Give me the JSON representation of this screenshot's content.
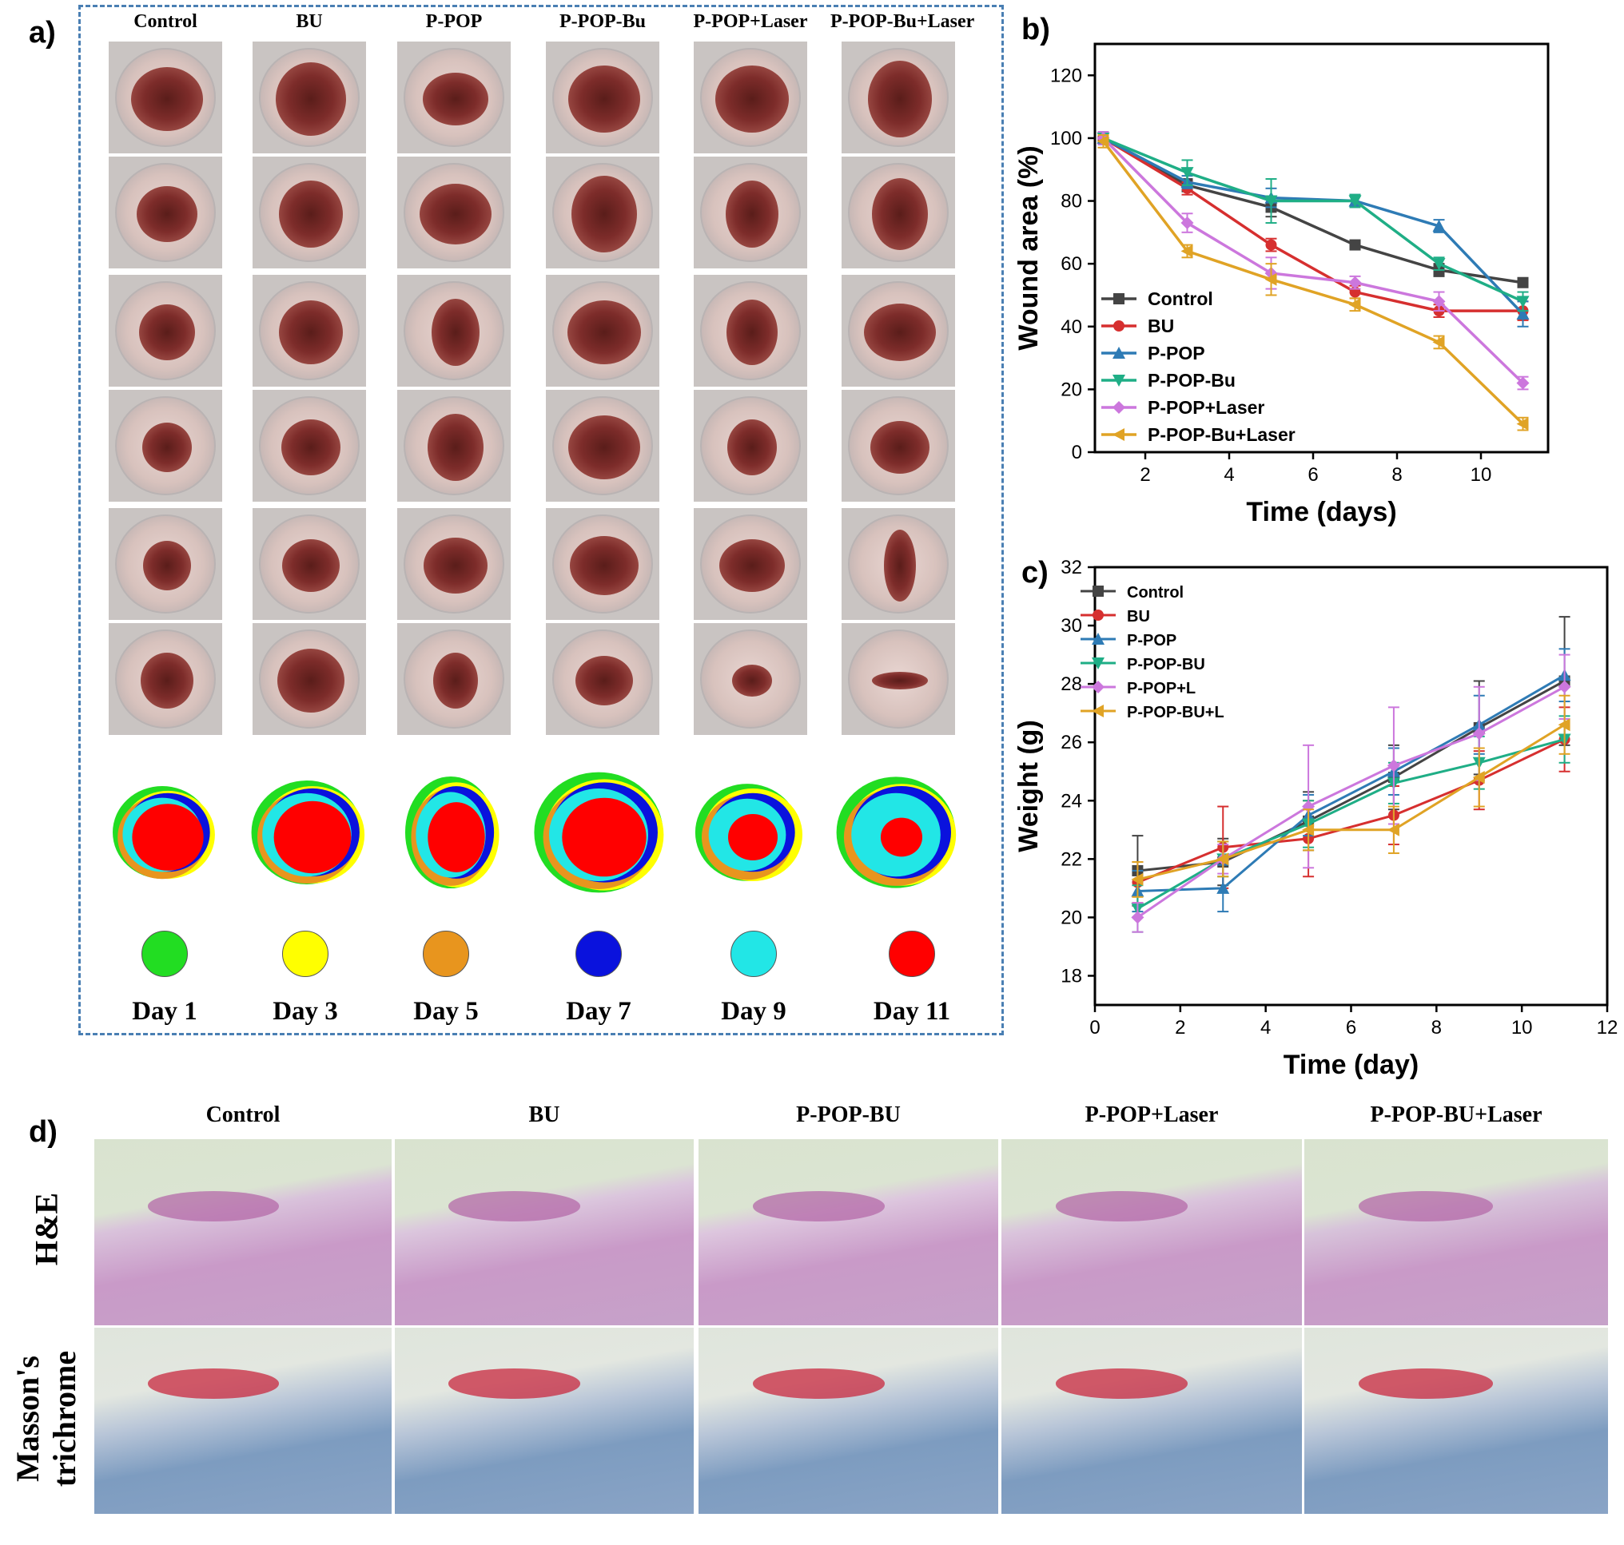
{
  "panel_labels": {
    "a": "a)",
    "b": "b)",
    "c": "c)",
    "d": "d)"
  },
  "panel_a": {
    "columns": [
      "Control",
      "BU",
      "P-POP",
      "P-POP-Bu",
      "P-POP+Laser",
      "P-POP-Bu+Laser"
    ],
    "day_legend": [
      {
        "label": "Day 1",
        "color": "#22dd22"
      },
      {
        "label": "Day 3",
        "color": "#ffff00"
      },
      {
        "label": "Day 5",
        "color": "#e8951e"
      },
      {
        "label": "Day 7",
        "color": "#0a12dd"
      },
      {
        "label": "Day 9",
        "color": "#22e6e6"
      },
      {
        "label": "Day 11",
        "color": "#ff0000"
      }
    ],
    "frame_color": "#4a7fb3"
  },
  "chart_data": [
    {
      "id": "b",
      "type": "line",
      "xlabel": "Time (days)",
      "ylabel": "Wound area (%)",
      "xlim": [
        0.8,
        11.6
      ],
      "ylim": [
        0,
        130
      ],
      "xticks": [
        2,
        4,
        6,
        8,
        10
      ],
      "yticks": [
        0,
        20,
        40,
        60,
        80,
        100,
        120
      ],
      "legend_position": "bottom-left",
      "x": [
        1,
        3,
        5,
        7,
        9,
        11
      ],
      "series": [
        {
          "name": "Control",
          "color": "#444444",
          "marker": "square",
          "values": [
            100,
            85,
            78,
            66,
            58,
            54
          ],
          "err": [
            2,
            2,
            3,
            1,
            2,
            1
          ]
        },
        {
          "name": "BU",
          "color": "#d62f2f",
          "marker": "circle",
          "values": [
            100,
            84,
            66,
            51,
            45,
            45
          ],
          "err": [
            2,
            2,
            2,
            2,
            2,
            3
          ]
        },
        {
          "name": "P-POP",
          "color": "#2e7bb5",
          "marker": "triangle-up",
          "values": [
            100,
            86,
            81,
            80,
            72,
            44
          ],
          "err": [
            2,
            2,
            3,
            2,
            2,
            4
          ]
        },
        {
          "name": "P-POP-Bu",
          "color": "#1fae86",
          "marker": "triangle-down",
          "values": [
            100,
            89,
            80,
            80,
            60,
            48
          ],
          "err": [
            2,
            4,
            7,
            2,
            2,
            3
          ]
        },
        {
          "name": "P-POP+Laser",
          "color": "#cc77dd",
          "marker": "diamond",
          "values": [
            100,
            73,
            57,
            54,
            48,
            22
          ],
          "err": [
            2,
            3,
            5,
            2,
            3,
            2
          ]
        },
        {
          "name": "P-POP-Bu+Laser",
          "color": "#e0a325",
          "marker": "triangle-left",
          "values": [
            99,
            64,
            55,
            47,
            35,
            9
          ],
          "err": [
            2,
            2,
            5,
            2,
            2,
            2
          ]
        }
      ]
    },
    {
      "id": "c",
      "type": "line",
      "xlabel": "Time (day)",
      "ylabel": "Weight (g)",
      "xlim": [
        0,
        12
      ],
      "ylim": [
        17,
        32
      ],
      "xticks": [
        0,
        2,
        4,
        6,
        8,
        10,
        12
      ],
      "yticks": [
        18,
        20,
        22,
        24,
        26,
        28,
        30,
        32
      ],
      "legend_position": "top-left",
      "x": [
        1,
        3,
        5,
        7,
        9,
        11
      ],
      "series": [
        {
          "name": "Control",
          "color": "#444444",
          "marker": "square",
          "values": [
            21.6,
            21.9,
            23.3,
            24.8,
            26.5,
            28.1
          ],
          "err": [
            1.2,
            0.8,
            1.0,
            1.1,
            1.6,
            2.2
          ]
        },
        {
          "name": "BU",
          "color": "#d62f2f",
          "marker": "circle",
          "values": [
            21.2,
            22.4,
            22.7,
            23.5,
            24.7,
            26.1
          ],
          "err": [
            0.7,
            1.4,
            1.3,
            1.0,
            1.0,
            1.1
          ]
        },
        {
          "name": "P-POP",
          "color": "#2e7bb5",
          "marker": "triangle-up",
          "values": [
            20.9,
            21.0,
            23.5,
            25.0,
            26.6,
            28.3
          ],
          "err": [
            0.7,
            0.8,
            0.7,
            0.8,
            1.0,
            0.9
          ]
        },
        {
          "name": "P-POP-BU",
          "color": "#1fae86",
          "marker": "triangle-down",
          "values": [
            20.3,
            22.0,
            23.2,
            24.6,
            25.3,
            26.1
          ],
          "err": [
            0.8,
            0.6,
            0.8,
            0.7,
            0.9,
            0.8
          ]
        },
        {
          "name": "P-POP+L",
          "color": "#cc77dd",
          "marker": "diamond",
          "values": [
            20.0,
            22.0,
            23.8,
            25.2,
            26.3,
            27.9
          ],
          "err": [
            0.5,
            0.5,
            2.1,
            2.0,
            1.6,
            1.1
          ]
        },
        {
          "name": "P-POP-BU+L",
          "color": "#e0a325",
          "marker": "triangle-left",
          "values": [
            21.3,
            22.0,
            23.0,
            23.0,
            24.8,
            26.6
          ],
          "err": [
            0.6,
            0.6,
            0.7,
            0.8,
            1.0,
            1.0
          ]
        }
      ]
    }
  ],
  "panel_d": {
    "columns": [
      "Control",
      "BU",
      "P-POP-BU",
      "P-POP+Laser",
      "P-POP-BU+Laser"
    ],
    "rows": [
      "H&E",
      "Masson's trichrome"
    ],
    "row_label_lines": [
      [
        "H&E"
      ],
      [
        "Masson's",
        "trichrome"
      ]
    ]
  }
}
